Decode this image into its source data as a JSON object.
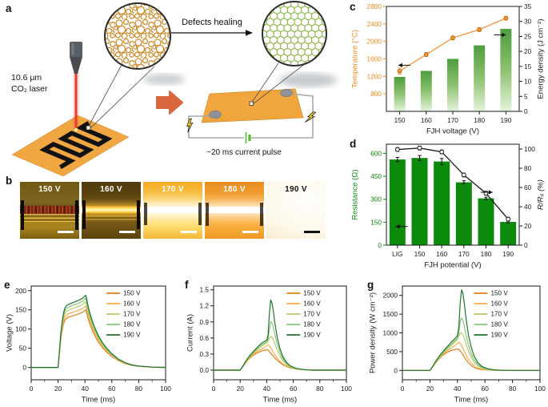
{
  "labels": {
    "a": "a",
    "b": "b",
    "c": "c",
    "d": "d",
    "e": "e",
    "f": "f",
    "g": "g"
  },
  "panel_a": {
    "laser_line1": "10.6 μm",
    "laser_line2": "CO₂ laser",
    "defects_healing": "Defects healing",
    "current_pulse": "~20 ms current pulse",
    "disordered_lattice_color": "#CE8C2E",
    "ordered_lattice_color": "#85B23B",
    "substrate_color": "#F0A742",
    "device_color": "#F0A43C",
    "transition_arrow_color": "#D9663C",
    "laser_beam_color": "#E6402C",
    "battery_color": "#5CB52E",
    "bolt_color": "#FFD21E"
  },
  "panel_b": {
    "tiles": [
      {
        "label": "150 V",
        "style": "t1",
        "label_color": "#ffffff",
        "scalebar_color": "#ffffff"
      },
      {
        "label": "160 V",
        "style": "t2",
        "label_color": "#ffffff",
        "scalebar_color": "#ffffff"
      },
      {
        "label": "170 V",
        "style": "t3",
        "label_color": "#ffffff",
        "scalebar_color": "#ffffff"
      },
      {
        "label": "180 V",
        "style": "t4",
        "label_color": "#ffffff",
        "scalebar_color": "#ffffff"
      },
      {
        "label": "190 V",
        "style": "t5",
        "label_color": "#111111",
        "scalebar_color": "#111111"
      }
    ]
  },
  "chart_data": [
    {
      "panel": "c",
      "type": "bar+line",
      "categories": [
        "150",
        "160",
        "170",
        "180",
        "190"
      ],
      "xlabel": "FJH voltage (V)",
      "left_axis": {
        "label": "Temperature (°C)",
        "range": [
          400,
          2800
        ],
        "ticks": [
          800,
          1200,
          1600,
          2000,
          2400,
          2800
        ],
        "color": "#F0891C"
      },
      "right_axis": {
        "label": "Energy density (J cm⁻²)",
        "range": [
          0,
          35
        ],
        "ticks": [
          0,
          5,
          10,
          15,
          20,
          25,
          30,
          35
        ],
        "color": "#1a1a1a"
      },
      "bars": {
        "name": "Energy density",
        "axis": "right",
        "values": [
          11.5,
          13.5,
          17.5,
          22,
          27.5
        ],
        "width": 14,
        "fill": "gradient",
        "gradient": [
          "#4E9C3E",
          "#8CC270",
          "#E6F3DA"
        ]
      },
      "line": {
        "name": "Temperature",
        "axis": "left",
        "values": [
          1320,
          1700,
          2080,
          2270,
          2530
        ],
        "errors": [
          70,
          45,
          45,
          45,
          45
        ],
        "color": "#F5953B",
        "marker": "filled"
      },
      "arrows": [
        {
          "axis": "left",
          "value": 1455,
          "x_frac": 0.09,
          "dir": "left"
        },
        {
          "axis": "right",
          "value": 25.5,
          "x_frac": 0.9,
          "dir": "right"
        }
      ]
    },
    {
      "panel": "d",
      "type": "bar+line",
      "categories": [
        "LIG",
        "150",
        "160",
        "170",
        "180",
        "190"
      ],
      "xlabel": "FJH potential (V)",
      "left_axis": {
        "label": "Resistance (Ω)",
        "range": [
          0,
          660
        ],
        "ticks": [
          0,
          150,
          300,
          450,
          600
        ],
        "color": "#0B8A0B"
      },
      "right_axis": {
        "label": "R/R₀ (%)",
        "range": [
          0,
          105
        ],
        "ticks": [
          0,
          20,
          40,
          60,
          80,
          100
        ],
        "color": "#1a1a1a",
        "italic": true
      },
      "bars": {
        "name": "Resistance",
        "axis": "left",
        "values": [
          560,
          570,
          547,
          411,
          306,
          152
        ],
        "errors": [
          14,
          16,
          20,
          10,
          8,
          6
        ],
        "width": 20,
        "fill": "solid",
        "color": "#0B8A0B"
      },
      "line": {
        "name": "R/R₀",
        "axis": "right",
        "values": [
          99.5,
          101,
          97,
          73,
          54,
          27
        ],
        "errors": [
          2,
          2,
          2,
          2,
          2,
          2
        ],
        "color": "#1a1a1a",
        "marker": "open"
      },
      "arrows": [
        {
          "axis": "left",
          "value": 122,
          "x_frac": 0.07,
          "dir": "left"
        },
        {
          "axis": "right",
          "value": 55,
          "x_frac": 0.8,
          "dir": "right"
        }
      ]
    },
    {
      "panel": "e",
      "type": "line",
      "x": {
        "label": "Time (ms)",
        "range": [
          0,
          100
        ],
        "ticks": [
          0,
          20,
          40,
          60,
          80,
          100
        ],
        "minor": [
          10,
          30,
          50,
          70,
          90
        ]
      },
      "y": {
        "label": "Voltage (V)",
        "range": [
          -32,
          212
        ],
        "ticks": [
          0,
          50,
          100,
          150,
          200
        ]
      },
      "t": [
        0,
        19,
        20,
        21,
        22,
        23,
        24,
        25,
        26,
        27,
        28,
        30,
        32,
        34,
        36,
        38,
        40,
        40.5,
        41,
        42,
        43,
        44,
        46,
        48,
        50,
        53,
        56,
        60,
        65,
        70,
        75,
        80,
        90,
        100
      ],
      "shape": [
        0,
        0,
        0,
        0.23,
        0.47,
        0.63,
        0.75,
        0.82,
        0.85,
        0.865,
        0.875,
        0.89,
        0.905,
        0.92,
        0.935,
        0.955,
        0.99,
        1.0,
        0.97,
        0.88,
        0.8,
        0.73,
        0.615,
        0.52,
        0.44,
        0.345,
        0.27,
        0.19,
        0.115,
        0.065,
        0.035,
        0.02,
        0.005,
        0
      ],
      "series": [
        {
          "name": "150 V",
          "color": "#DF7F1C",
          "peak": 150
        },
        {
          "name": "160 V",
          "color": "#FBAD4B",
          "peak": 160
        },
        {
          "name": "170 V",
          "color": "#B2CD67",
          "peak": 171
        },
        {
          "name": "180 V",
          "color": "#8AC47F",
          "peak": 180
        },
        {
          "name": "190 V",
          "color": "#20762C",
          "peak": 188
        }
      ],
      "legend": {
        "x_frac": 0.56
      }
    },
    {
      "panel": "f",
      "type": "line",
      "x": {
        "label": "Time (ms)",
        "range": [
          0,
          100
        ],
        "ticks": [
          0,
          20,
          40,
          60,
          80,
          100
        ],
        "minor": [
          10,
          30,
          50,
          70,
          90
        ]
      },
      "y": {
        "label": "Current (A)",
        "range": [
          -0.18,
          1.57
        ],
        "ticks": [
          0,
          0.3,
          0.6,
          0.9,
          1.2,
          1.5
        ],
        "decimals": 1
      },
      "t": [
        0,
        19,
        20,
        22,
        24,
        26,
        28,
        30,
        32,
        34,
        36,
        38,
        40,
        41,
        42,
        43,
        44,
        45,
        46,
        48,
        50,
        52,
        55,
        58,
        62,
        66,
        70,
        75,
        80,
        90,
        100
      ],
      "series": [
        {
          "name": "150 V",
          "color": "#DF7F1C",
          "y": [
            0,
            0,
            0,
            0.06,
            0.13,
            0.19,
            0.24,
            0.28,
            0.31,
            0.335,
            0.355,
            0.37,
            0.38,
            0.375,
            0.35,
            0.32,
            0.29,
            0.26,
            0.23,
            0.18,
            0.14,
            0.105,
            0.065,
            0.04,
            0.02,
            0.01,
            0.005,
            0,
            0,
            0,
            0
          ]
        },
        {
          "name": "160 V",
          "color": "#FBAD4B",
          "y": [
            0,
            0,
            0,
            0.065,
            0.14,
            0.2,
            0.255,
            0.3,
            0.335,
            0.365,
            0.39,
            0.42,
            0.455,
            0.47,
            0.455,
            0.42,
            0.38,
            0.335,
            0.29,
            0.22,
            0.165,
            0.12,
            0.075,
            0.045,
            0.022,
            0.012,
            0.005,
            0,
            0,
            0,
            0
          ]
        },
        {
          "name": "170 V",
          "color": "#B2CD67",
          "y": [
            0,
            0,
            0,
            0.07,
            0.15,
            0.21,
            0.27,
            0.32,
            0.36,
            0.4,
            0.44,
            0.48,
            0.51,
            0.54,
            0.6,
            0.63,
            0.615,
            0.565,
            0.5,
            0.37,
            0.26,
            0.18,
            0.1,
            0.055,
            0.027,
            0.013,
            0.006,
            0,
            0,
            0,
            0
          ]
        },
        {
          "name": "180 V",
          "color": "#8AC47F",
          "y": [
            0,
            0,
            0,
            0.07,
            0.155,
            0.22,
            0.28,
            0.335,
            0.385,
            0.43,
            0.47,
            0.5,
            0.53,
            0.58,
            0.75,
            0.905,
            0.88,
            0.8,
            0.68,
            0.48,
            0.33,
            0.22,
            0.12,
            0.065,
            0.03,
            0.014,
            0.006,
            0,
            0,
            0,
            0
          ]
        },
        {
          "name": "190 V",
          "color": "#20762C",
          "y": [
            0,
            0,
            0,
            0.075,
            0.16,
            0.23,
            0.295,
            0.35,
            0.4,
            0.455,
            0.5,
            0.53,
            0.56,
            0.65,
            1.05,
            1.31,
            1.25,
            1.1,
            0.9,
            0.6,
            0.4,
            0.26,
            0.14,
            0.075,
            0.034,
            0.015,
            0.006,
            0,
            0,
            0,
            0
          ]
        }
      ],
      "legend": {
        "x_frac": 0.55
      }
    },
    {
      "panel": "g",
      "type": "line",
      "x": {
        "label": "Time (ms)",
        "range": [
          0,
          100
        ],
        "ticks": [
          0,
          20,
          40,
          60,
          80,
          100
        ],
        "minor": [
          10,
          30,
          50,
          70,
          90
        ]
      },
      "y": {
        "label": "Power density (W cm⁻²)",
        "range": [
          -250,
          2250
        ],
        "ticks": [
          0,
          500,
          1000,
          1500,
          2000
        ]
      },
      "t": [
        0,
        19,
        20,
        22,
        24,
        26,
        28,
        30,
        32,
        34,
        36,
        38,
        40,
        41,
        42,
        43,
        44,
        45,
        46,
        48,
        50,
        52,
        55,
        58,
        62,
        66,
        70,
        75,
        80,
        90,
        100
      ],
      "series": [
        {
          "name": "150 V",
          "color": "#DF7F1C",
          "y": [
            0,
            0,
            0,
            90,
            190,
            280,
            360,
            420,
            470,
            505,
            535,
            555,
            570,
            560,
            520,
            470,
            415,
            355,
            295,
            200,
            130,
            80,
            40,
            18,
            8,
            3,
            0,
            0,
            0,
            0,
            0
          ]
        },
        {
          "name": "160 V",
          "color": "#FBAD4B",
          "y": [
            0,
            0,
            0,
            95,
            200,
            295,
            380,
            450,
            510,
            560,
            610,
            660,
            720,
            750,
            720,
            660,
            590,
            510,
            430,
            300,
            200,
            130,
            65,
            30,
            12,
            5,
            0,
            0,
            0,
            0,
            0
          ]
        },
        {
          "name": "170 V",
          "color": "#B2CD67",
          "y": [
            0,
            0,
            0,
            100,
            210,
            310,
            400,
            475,
            545,
            610,
            680,
            750,
            820,
            900,
            990,
            1000,
            950,
            860,
            740,
            520,
            350,
            230,
            120,
            60,
            25,
            10,
            4,
            0,
            0,
            0,
            0
          ]
        },
        {
          "name": "180 V",
          "color": "#8AC47F",
          "y": [
            0,
            0,
            0,
            105,
            220,
            325,
            420,
            500,
            575,
            650,
            720,
            790,
            860,
            1000,
            1300,
            1400,
            1330,
            1180,
            990,
            680,
            450,
            290,
            150,
            75,
            32,
            13,
            5,
            0,
            0,
            0,
            0
          ]
        },
        {
          "name": "190 V",
          "color": "#20762C",
          "y": [
            0,
            0,
            0,
            110,
            230,
            340,
            440,
            525,
            610,
            690,
            770,
            840,
            920,
            1150,
            1800,
            2150,
            2050,
            1780,
            1450,
            950,
            620,
            390,
            200,
            100,
            42,
            17,
            6,
            0,
            0,
            0,
            0
          ]
        }
      ],
      "legend": {
        "x_frac": 0.52
      }
    }
  ]
}
